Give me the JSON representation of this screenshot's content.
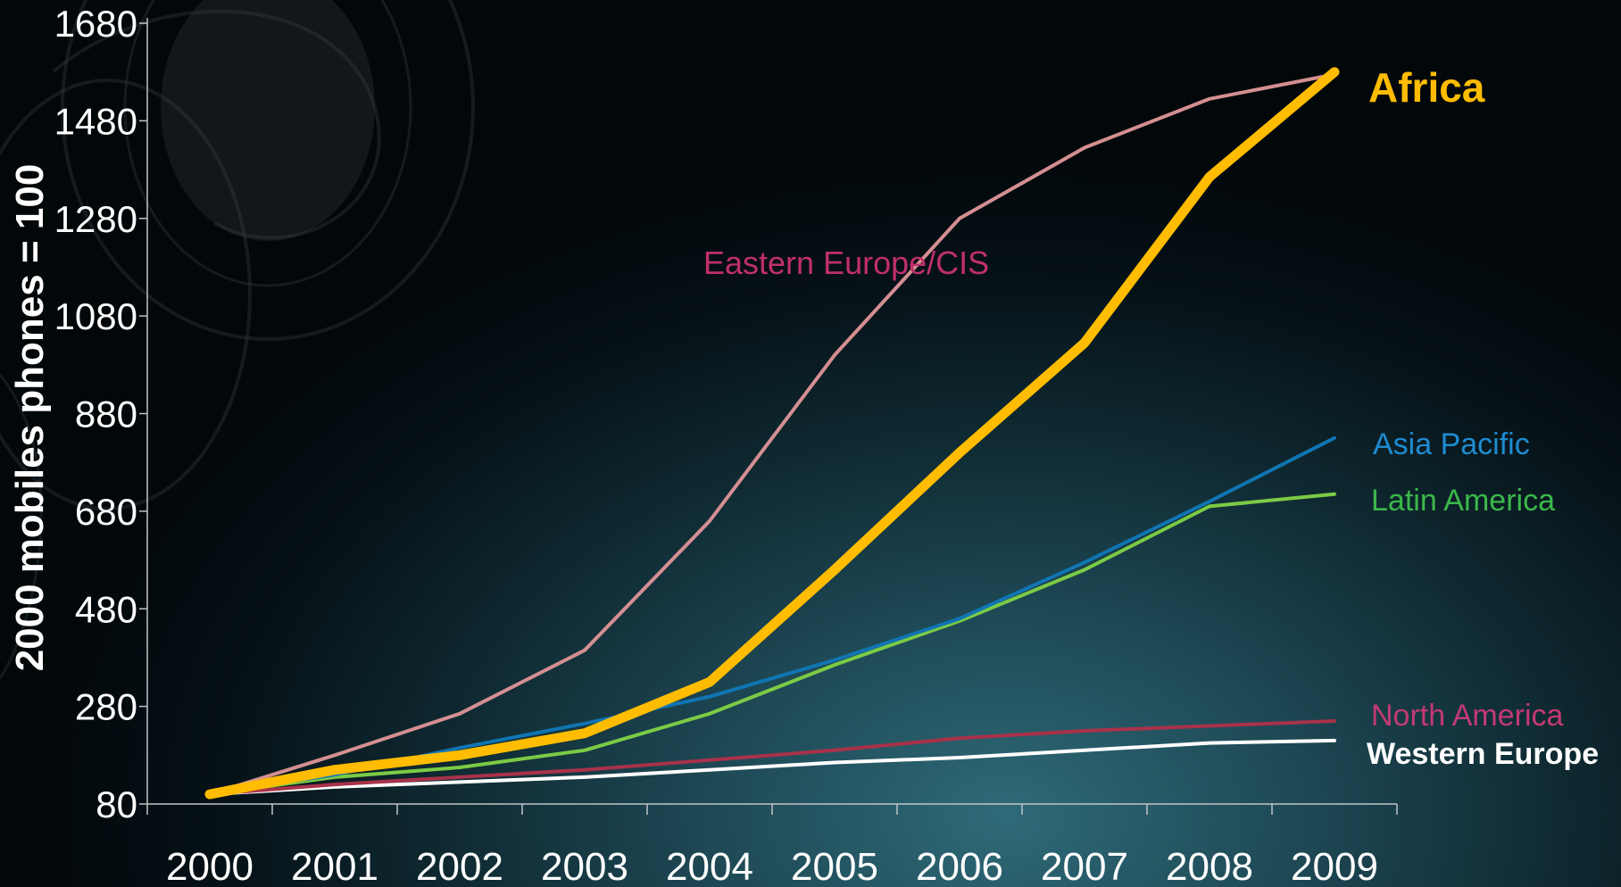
{
  "chart_data": {
    "type": "line",
    "title": "",
    "xlabel": "",
    "ylabel": "2000 mobiles phones = 100",
    "x": [
      "2000",
      "2001",
      "2002",
      "2003",
      "2004",
      "2005",
      "2006",
      "2007",
      "2008",
      "2009"
    ],
    "y_ticks": [
      "80",
      "280",
      "480",
      "680",
      "880",
      "1080",
      "1280",
      "1480",
      "1680"
    ],
    "ylim": [
      80,
      1680
    ],
    "grid": false,
    "legend": "inline labels at right end of lines",
    "series": [
      {
        "name": "Eastern Europe/CIS",
        "color": "#d48f92",
        "label_color": "#c0306a",
        "values": [
          100,
          180,
          265,
          395,
          660,
          1000,
          1280,
          1425,
          1525,
          1575
        ]
      },
      {
        "name": "Africa",
        "color": "#ffbc00",
        "label_color": "#ffbc00",
        "values": [
          100,
          150,
          180,
          225,
          330,
          560,
          800,
          1025,
          1365,
          1580
        ]
      },
      {
        "name": "Asia Pacific",
        "color": "#1075b3",
        "label_color": "#1e8bd0",
        "values": [
          100,
          140,
          195,
          245,
          300,
          375,
          460,
          575,
          700,
          830
        ]
      },
      {
        "name": "Latin America",
        "color": "#7bcb45",
        "label_color": "#3cb84a",
        "values": [
          100,
          135,
          155,
          190,
          265,
          365,
          455,
          560,
          690,
          715
        ]
      },
      {
        "name": "North America",
        "color": "#a8324a",
        "label_color": "#c23a74",
        "values": [
          100,
          120,
          135,
          150,
          170,
          190,
          215,
          230,
          240,
          250
        ]
      },
      {
        "name": "Western Europe",
        "color": "#ffffff",
        "label_color": "#ffffff",
        "values": [
          100,
          115,
          125,
          135,
          150,
          165,
          175,
          190,
          205,
          210
        ]
      }
    ]
  }
}
